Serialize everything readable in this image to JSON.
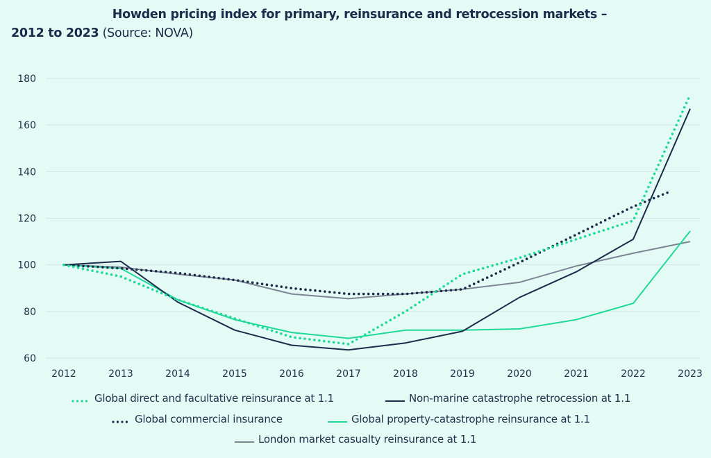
{
  "chart_data": {
    "type": "line",
    "title": "Howden pricing index for primary, reinsurance and retrocession markets –",
    "title_line2_bold": "2012 to 2023",
    "title_line2_normal": "(Source: NOVA)",
    "xlabel": "",
    "ylabel": "",
    "x": [
      2012,
      2013,
      2014,
      2015,
      2016,
      2017,
      2018,
      2019,
      2020,
      2021,
      2022,
      2023
    ],
    "x_tick_labels": [
      "2012",
      "2013",
      "2014",
      "2015",
      "2016",
      "2017",
      "2018",
      "2019",
      "2020",
      "2021",
      "2022",
      "2023"
    ],
    "ylim": [
      60,
      180
    ],
    "y_ticks": [
      60,
      80,
      100,
      120,
      140,
      160,
      180
    ],
    "grid": "horizontal",
    "legend_position": "bottom",
    "series": [
      {
        "name": "Global direct and facultative reinsurance at 1.1",
        "style": "dotted",
        "color": "#1fd99b",
        "x": [
          2012,
          2013,
          2014,
          2015,
          2016,
          2017,
          2018,
          2019,
          2020,
          2021,
          2022,
          2023
        ],
        "values": [
          100,
          95,
          85,
          77,
          69,
          66,
          80,
          96,
          103,
          111,
          119,
          173
        ]
      },
      {
        "name": "Non-marine catastrophe retrocession at 1.1",
        "style": "solid",
        "color": "#1b2b4a",
        "x": [
          2012,
          2013,
          2014,
          2015,
          2016,
          2017,
          2018,
          2019,
          2020,
          2021,
          2022,
          2023
        ],
        "values": [
          100,
          101.5,
          84,
          72,
          65.5,
          63.5,
          66.5,
          71.5,
          86,
          97,
          111,
          167
        ]
      },
      {
        "name": "Global commercial insurance",
        "style": "dotted",
        "color": "#1b2b4a",
        "x": [
          2012,
          2013,
          2014,
          2015,
          2016,
          2017,
          2018,
          2019,
          2020,
          2021,
          2022,
          2022.6
        ],
        "values": [
          100,
          98.5,
          96.5,
          93.5,
          90,
          87.5,
          87.5,
          89.5,
          101,
          113,
          125,
          131
        ]
      },
      {
        "name": "Global property-catastrophe reinsurance at 1.1",
        "style": "solid",
        "color": "#1fd99b",
        "x": [
          2012,
          2013,
          2014,
          2015,
          2016,
          2017,
          2018,
          2019,
          2020,
          2021,
          2022,
          2023
        ],
        "values": [
          100,
          98.5,
          85,
          76.5,
          71,
          68.5,
          72,
          72,
          72.5,
          76.5,
          83.5,
          114.5
        ]
      },
      {
        "name": "London market casualty reinsurance at 1.1",
        "style": "solid",
        "color": "#7d8594",
        "x": [
          2012,
          2013,
          2014,
          2015,
          2016,
          2017,
          2018,
          2019,
          2020,
          2021,
          2022,
          2023
        ],
        "values": [
          100,
          99,
          96,
          93.5,
          87.5,
          85.5,
          87.5,
          89.5,
          92.5,
          99.5,
          105,
          110
        ]
      }
    ]
  }
}
